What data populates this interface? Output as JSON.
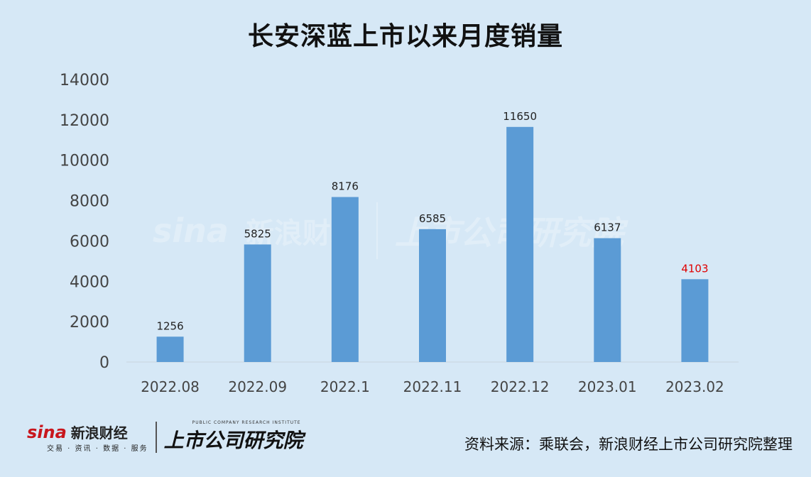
{
  "chart_data": {
    "type": "bar",
    "title": "长安深蓝上市以来月度销量",
    "categories": [
      "2022.08",
      "2022.09",
      "2022.1",
      "2022.11",
      "2022.12",
      "2023.01",
      "2023.02"
    ],
    "values": [
      1256,
      5825,
      8176,
      6585,
      11650,
      6137,
      4103
    ],
    "data_labels": [
      "1256",
      "5825",
      "8176",
      "6585",
      "11650",
      "6137",
      "4103"
    ],
    "highlight_index": 6,
    "ylim": [
      0,
      14000
    ],
    "yticks": [
      0,
      2000,
      4000,
      6000,
      8000,
      10000,
      12000,
      14000
    ],
    "grid": false,
    "colors": {
      "bar": "#5b9bd5",
      "highlight_label": "#e00000",
      "label": "#222222",
      "axis_text": "#444444",
      "background": "#d6e8f6"
    }
  },
  "watermark": {
    "brand": "sina",
    "brand_cn": "新浪财经",
    "institute": "上市公司研究院"
  },
  "footer": {
    "logo_brand": "sina",
    "logo_brand_cn": "新浪财经",
    "logo_brand_sub": "交易 · 资讯 · 数据 · 服务",
    "logo_institute_en": "PUBLIC COMPANY RESEARCH INSTITUTE",
    "logo_institute_cn": "上市公司研究院",
    "source": "资料来源：乘联会，新浪财经上市公司研究院整理"
  }
}
